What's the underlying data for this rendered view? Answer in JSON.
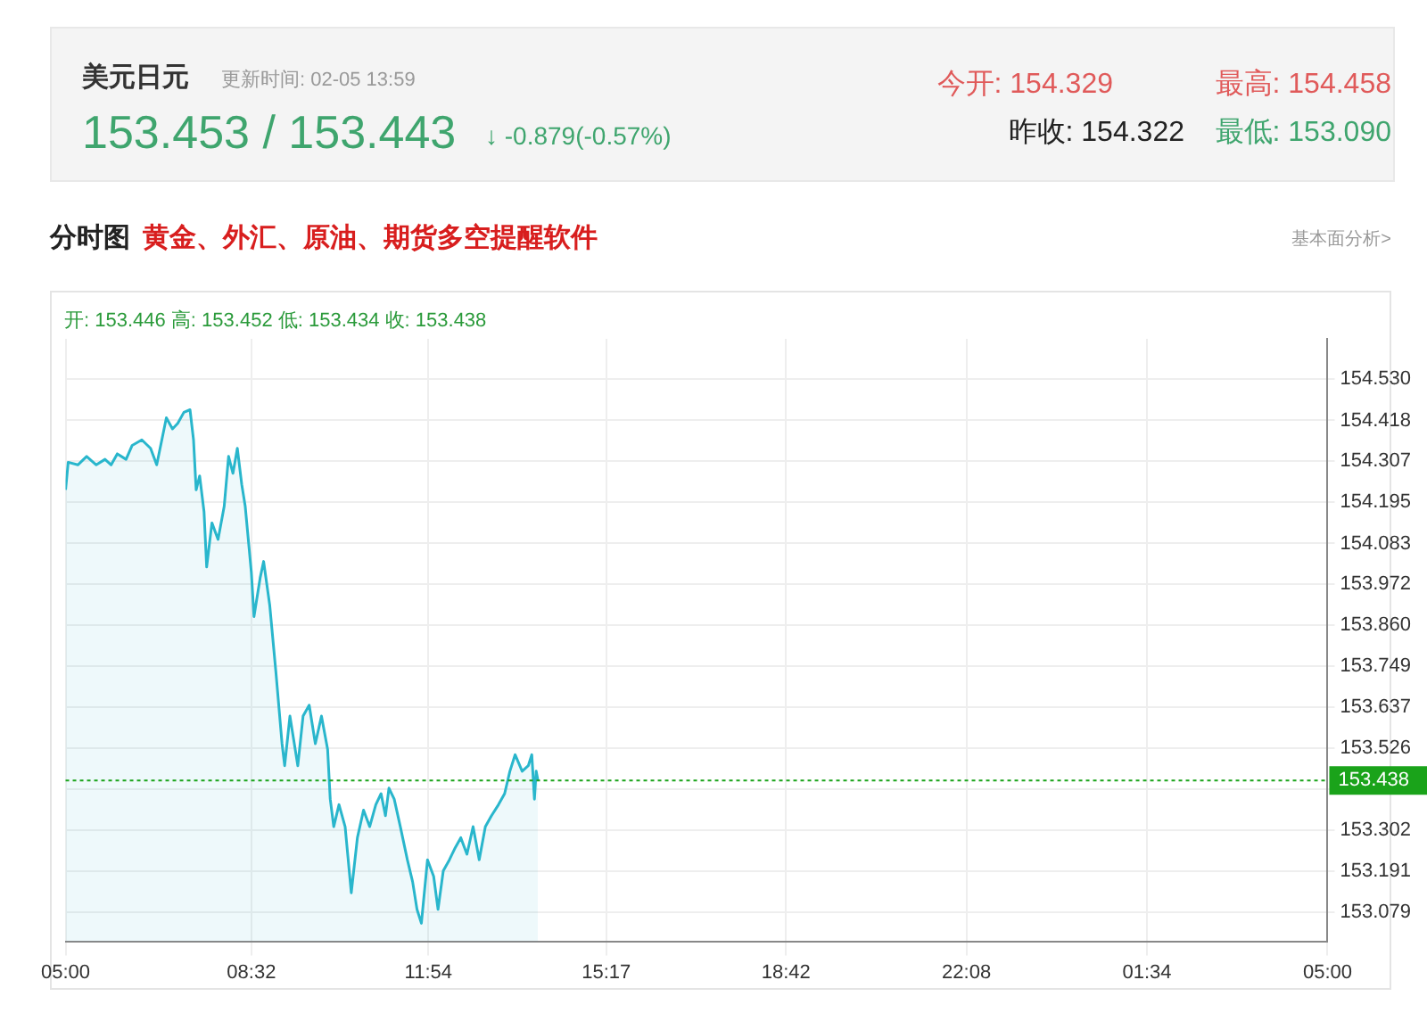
{
  "chart_data": {
    "type": "area",
    "title": "美元日元",
    "subtitle": "更新时间: 02-05 13:59",
    "annotations": [
      "153.453 / 153.443",
      "↓ -0.879(-0.57%)",
      "今开: 154.329",
      "最高: 154.458",
      "昨收: 154.322",
      "最低: 153.090",
      "分时图",
      "黄金、外汇、原油、期货多空提醒软件",
      "基本面分析>",
      "开: 153.446  高: 153.452  低: 153.434  收: 153.438"
    ],
    "x": [
      "--02-05T05:00",
      "--02-05T05:03",
      "--02-05T05:14",
      "--02-05T05:24",
      "--02-05T05:35",
      "--02-05T05:45",
      "--02-05T05:52",
      "--02-05T05:59",
      "--02-05T06:09",
      "--02-05T06:16",
      "--02-05T06:27",
      "--02-05T06:37",
      "--02-05T06:44",
      "--02-05T06:55",
      "--02-05T07:02",
      "--02-05T07:08",
      "--02-05T07:15",
      "--02-05T07:22",
      "--02-05T07:26",
      "--02-05T07:29",
      "--02-05T07:33",
      "--02-05T07:38",
      "--02-05T07:41",
      "--02-05T07:47",
      "--02-05T07:54",
      "--02-05T08:01",
      "--02-05T08:06",
      "--02-05T08:11",
      "--02-05T08:16",
      "--02-05T08:21",
      "--02-05T08:25",
      "--02-05T08:32",
      "--02-05T08:35",
      "--02-05T08:42",
      "--02-05T08:46",
      "--02-05T08:53",
      "--02-05T09:00",
      "--02-05T09:07",
      "--02-05T09:10",
      "--02-05T09:16",
      "--02-05T09:20",
      "--02-05T09:25",
      "--02-05T09:31",
      "--02-05T09:38",
      "--02-05T09:45",
      "--02-05T09:52",
      "--02-05T09:59",
      "--02-05T10:02",
      "--02-05T10:06",
      "--02-05T10:12",
      "--02-05T10:19",
      "--02-05T10:26",
      "--02-05T10:33",
      "--02-05T10:40",
      "--02-05T10:47",
      "--02-05T10:54",
      "--02-05T11:00",
      "--02-05T11:05",
      "--02-05T11:09",
      "--02-05T11:15",
      "--02-05T11:22",
      "--02-05T11:30",
      "--02-05T11:36",
      "--02-05T11:41",
      "--02-05T11:46",
      "--02-05T11:53",
      "--02-05T12:00",
      "--02-05T12:05",
      "--02-05T12:11",
      "--02-05T12:18",
      "--02-05T12:24",
      "--02-05T12:31",
      "--02-05T12:38",
      "--02-05T12:45",
      "--02-05T12:52",
      "--02-05T12:59",
      "--02-05T13:06",
      "--02-05T13:14",
      "--02-05T13:21",
      "--02-05T13:27",
      "--02-05T13:33",
      "--02-05T13:41",
      "--02-05T13:48",
      "--02-05T13:52",
      "--02-05T13:55",
      "--02-05T13:57",
      "--02-05T13:59"
    ],
    "series": [
      {
        "color": "#29b6cc",
        "values": [
          154.229,
          154.304,
          154.297,
          154.32,
          154.297,
          154.312,
          154.297,
          154.327,
          154.312,
          154.35,
          154.365,
          154.342,
          154.297,
          154.425,
          154.395,
          154.41,
          154.44,
          154.447,
          154.365,
          154.229,
          154.267,
          154.169,
          154.019,
          154.139,
          154.094,
          154.184,
          154.32,
          154.274,
          154.342,
          154.244,
          154.184,
          154.004,
          153.884,
          153.989,
          154.034,
          153.914,
          153.733,
          153.538,
          153.478,
          153.613,
          153.553,
          153.478,
          153.613,
          153.643,
          153.538,
          153.613,
          153.523,
          153.387,
          153.312,
          153.372,
          153.312,
          153.132,
          153.282,
          153.357,
          153.312,
          153.372,
          153.402,
          153.342,
          153.417,
          153.387,
          153.312,
          153.222,
          153.162,
          153.087,
          153.049,
          153.222,
          153.177,
          153.087,
          153.192,
          153.222,
          153.252,
          153.282,
          153.237,
          153.312,
          153.222,
          153.312,
          153.342,
          153.372,
          153.402,
          153.463,
          153.508,
          153.463,
          153.478,
          153.508,
          153.387,
          153.463,
          153.438
        ]
      }
    ],
    "xlim": [
      "--02-05T05:00",
      "--02-06T05:00"
    ],
    "xticks": [
      {
        "value": "--02-05T05:00",
        "label": "05:00"
      },
      {
        "value": "--02-05T08:32",
        "label": "08:32"
      },
      {
        "value": "--02-05T11:54",
        "label": "11:54"
      },
      {
        "value": "--02-05T15:17",
        "label": "15:17"
      },
      {
        "value": "--02-05T18:42",
        "label": "18:42"
      },
      {
        "value": "--02-05T22:08",
        "label": "22:08"
      },
      {
        "value": "--02-06T01:34",
        "label": "01:34"
      },
      {
        "value": "--02-06T05:00",
        "label": "05:00"
      }
    ],
    "ylim": [
      153.0,
      154.64
    ],
    "yticks": [
      153.079,
      153.191,
      153.302,
      {
        "value": 153.414,
        "label": null
      },
      153.526,
      153.637,
      153.749,
      {
        "value": 153.86,
        "label": "153.860"
      },
      153.972,
      154.083,
      154.195,
      154.307,
      154.418,
      {
        "value": 154.53,
        "label": "154.530"
      }
    ],
    "ref_lines": [
      {
        "axis": "y",
        "value": 153.438,
        "label": "153.438",
        "color": "#1aa31a",
        "line_style": "dotted"
      }
    ],
    "grid": true,
    "legend": false,
    "marker": "none",
    "line_style": "solid"
  }
}
